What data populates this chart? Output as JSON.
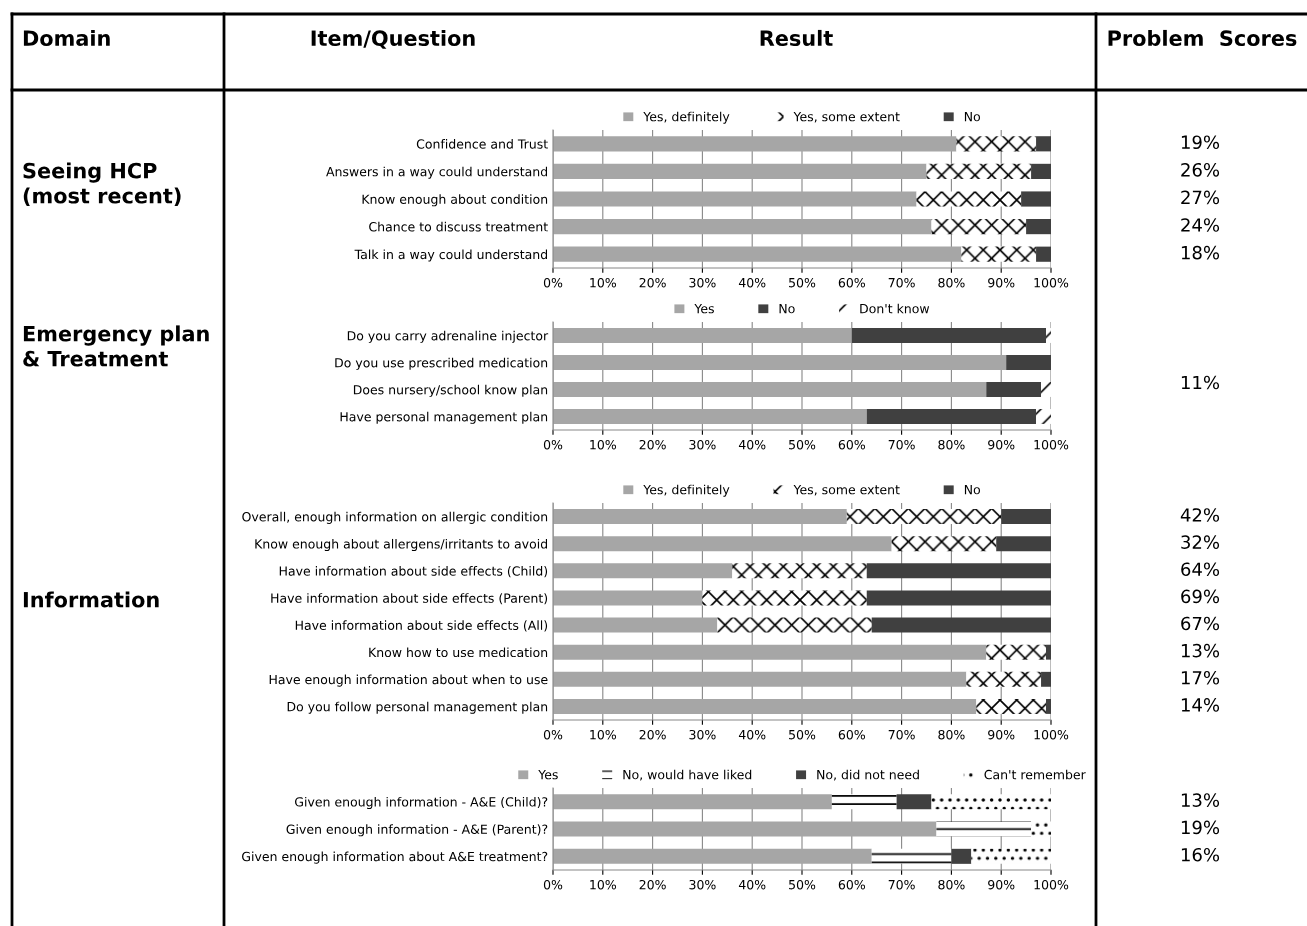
{
  "chart_data": [
    {
      "type": "other",
      "annotations": [
        "Domain",
        "Item/Question",
        "Result",
        "Problem  Scores"
      ]
    },
    {
      "type": "bar",
      "orientation": "horizontal",
      "stacked": true,
      "legend": "top",
      "grid": "x",
      "categories": [
        "Confidence and Trust",
        "Answers in a way could understand",
        "Know enough about condition",
        "Chance to discuss treatment",
        "Talk in a way could understand"
      ],
      "series": [
        {
          "name": "Yes, definitely",
          "color": "#a6a6a6",
          "values": [
            81,
            75,
            73,
            76,
            82
          ]
        },
        {
          "name": "Yes, some extent",
          "color": "#ffffff",
          "values": [
            16,
            21,
            21,
            19,
            15
          ]
        },
        {
          "name": "No",
          "color": "#404040",
          "values": [
            3,
            4,
            6,
            5,
            3
          ]
        }
      ],
      "xlim": [
        0,
        100
      ],
      "xticks": [
        {
          "value": 0,
          "label": "0%"
        },
        {
          "value": 10,
          "label": "10%"
        },
        {
          "value": 20,
          "label": "20%"
        },
        {
          "value": 30,
          "label": "30%"
        },
        {
          "value": 40,
          "label": "40%"
        },
        {
          "value": 50,
          "label": "50%"
        },
        {
          "value": 60,
          "label": "60%"
        },
        {
          "value": 70,
          "label": "70%"
        },
        {
          "value": 80,
          "label": "80%"
        },
        {
          "value": 90,
          "label": "90%"
        },
        {
          "value": 100,
          "label": "100%"
        }
      ],
      "ylabel": "Seeing HCP\n(most recent)",
      "annotations": [
        "19%",
        "26%",
        "27%",
        "24%",
        "18%"
      ]
    },
    {
      "type": "bar",
      "orientation": "horizontal",
      "stacked": true,
      "legend": "top",
      "grid": "x",
      "categories": [
        "Do you carry adrenaline injector",
        "Do you use prescribed medication",
        "Does nursery/school know plan",
        "Have personal management plan"
      ],
      "series": [
        {
          "name": "Yes",
          "color": "#a6a6a6",
          "values": [
            60,
            91,
            87,
            63
          ]
        },
        {
          "name": "No",
          "color": "#404040",
          "values": [
            39,
            9,
            11,
            34
          ]
        },
        {
          "name": "Don't know",
          "color": "#ffffff",
          "values": [
            1,
            0,
            2,
            3
          ]
        }
      ],
      "xlim": [
        0,
        100
      ],
      "xticks": [
        {
          "value": 0,
          "label": "0%"
        },
        {
          "value": 10,
          "label": "10%"
        },
        {
          "value": 20,
          "label": "20%"
        },
        {
          "value": 30,
          "label": "30%"
        },
        {
          "value": 40,
          "label": "40%"
        },
        {
          "value": 50,
          "label": "50%"
        },
        {
          "value": 60,
          "label": "60%"
        },
        {
          "value": 70,
          "label": "70%"
        },
        {
          "value": 80,
          "label": "80%"
        },
        {
          "value": 90,
          "label": "90%"
        },
        {
          "value": 100,
          "label": "100%"
        }
      ],
      "ylabel": "Emergency plan\n& Treatment",
      "annotations": [
        "11%"
      ]
    },
    {
      "type": "bar",
      "orientation": "horizontal",
      "stacked": true,
      "legend": "top",
      "grid": "x",
      "categories": [
        "Overall, enough information on allergic condition",
        "Know enough about allergens/irritants to avoid",
        "Have information about side effects (Child)",
        "Have information about side effects (Parent)",
        "Have information about side effects (All)",
        "Know how to use medication",
        "Have enough information about when to use",
        "Do you follow personal management plan"
      ],
      "series": [
        {
          "name": "Yes, definitely",
          "color": "#a6a6a6",
          "values": [
            59,
            68,
            36,
            30,
            33,
            87,
            83,
            85
          ]
        },
        {
          "name": "Yes, some extent",
          "color": "#ffffff",
          "values": [
            31,
            21,
            27,
            33,
            31,
            12,
            15,
            14
          ]
        },
        {
          "name": "No",
          "color": "#404040",
          "values": [
            10,
            11,
            37,
            37,
            36,
            1,
            2,
            1
          ]
        }
      ],
      "xlim": [
        0,
        100
      ],
      "xticks": [
        {
          "value": 0,
          "label": "0%"
        },
        {
          "value": 10,
          "label": "10%"
        },
        {
          "value": 20,
          "label": "20%"
        },
        {
          "value": 30,
          "label": "30%"
        },
        {
          "value": 40,
          "label": "40%"
        },
        {
          "value": 50,
          "label": "50%"
        },
        {
          "value": 60,
          "label": "60%"
        },
        {
          "value": 70,
          "label": "70%"
        },
        {
          "value": 80,
          "label": "80%"
        },
        {
          "value": 90,
          "label": "90%"
        },
        {
          "value": 100,
          "label": "100%"
        }
      ],
      "ylabel": "Information",
      "annotations": [
        "42%",
        "32%",
        "64%",
        "69%",
        "67%",
        "13%",
        "17%",
        "14%"
      ]
    },
    {
      "type": "bar",
      "orientation": "horizontal",
      "stacked": true,
      "legend": "top",
      "grid": "x",
      "categories": [
        "Given enough information - A&E (Child)?",
        "Given enough information - A&E (Parent)?",
        "Given enough information about A&E treatment?"
      ],
      "series": [
        {
          "name": "Yes",
          "color": "#a6a6a6",
          "values": [
            56,
            77,
            64
          ]
        },
        {
          "name": "No, would have liked",
          "color": "#ffffff",
          "values": [
            13,
            19,
            16
          ]
        },
        {
          "name": "No, did not need",
          "color": "#404040",
          "values": [
            7,
            0,
            4
          ]
        },
        {
          "name": "Can't remember",
          "color": "#fefefe",
          "values": [
            24,
            4,
            16
          ]
        }
      ],
      "xlim": [
        0,
        100
      ],
      "xticks": [
        {
          "value": 0,
          "label": "0%"
        },
        {
          "value": 10,
          "label": "10%"
        },
        {
          "value": 20,
          "label": "20%"
        },
        {
          "value": 30,
          "label": "30%"
        },
        {
          "value": 40,
          "label": "40%"
        },
        {
          "value": 50,
          "label": "50%"
        },
        {
          "value": 60,
          "label": "60%"
        },
        {
          "value": 70,
          "label": "70%"
        },
        {
          "value": 80,
          "label": "80%"
        },
        {
          "value": 90,
          "label": "90%"
        },
        {
          "value": 100,
          "label": "100%"
        }
      ],
      "annotations": [
        "13%",
        "19%",
        "16%"
      ]
    }
  ]
}
